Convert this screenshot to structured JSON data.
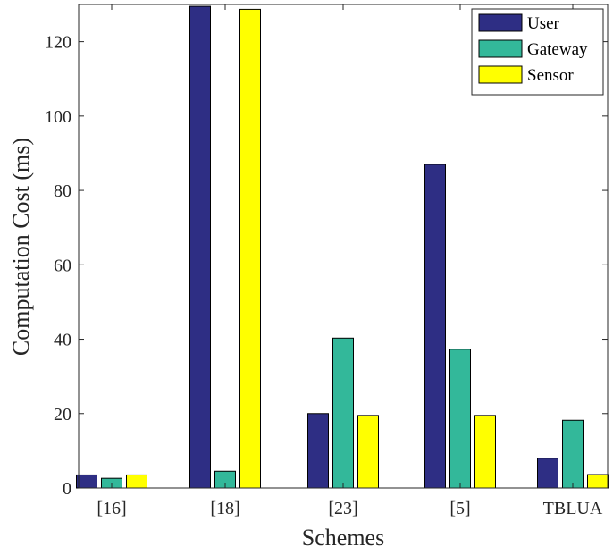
{
  "chart_data": {
    "type": "bar",
    "categories": [
      "[16]",
      "[18]",
      "[23]",
      "[5]",
      "TBLUA"
    ],
    "series": [
      {
        "name": "User",
        "color": "#2e2e84",
        "values": [
          3.5,
          129.5,
          20,
          87,
          8
        ]
      },
      {
        "name": "Gateway",
        "color": "#33b89a",
        "values": [
          2.6,
          4.5,
          40.3,
          37.3,
          18.2
        ]
      },
      {
        "name": "Sensor",
        "color": "#ffff00",
        "values": [
          3.5,
          128.7,
          19.5,
          19.5,
          3.6
        ]
      }
    ],
    "xlabel": "Schemes",
    "ylabel": "Computation Cost (ms)",
    "ylim": [
      0,
      130
    ],
    "yticks": [
      0,
      20,
      40,
      60,
      80,
      100,
      120
    ],
    "grid": false,
    "legend_position": "top-right"
  }
}
